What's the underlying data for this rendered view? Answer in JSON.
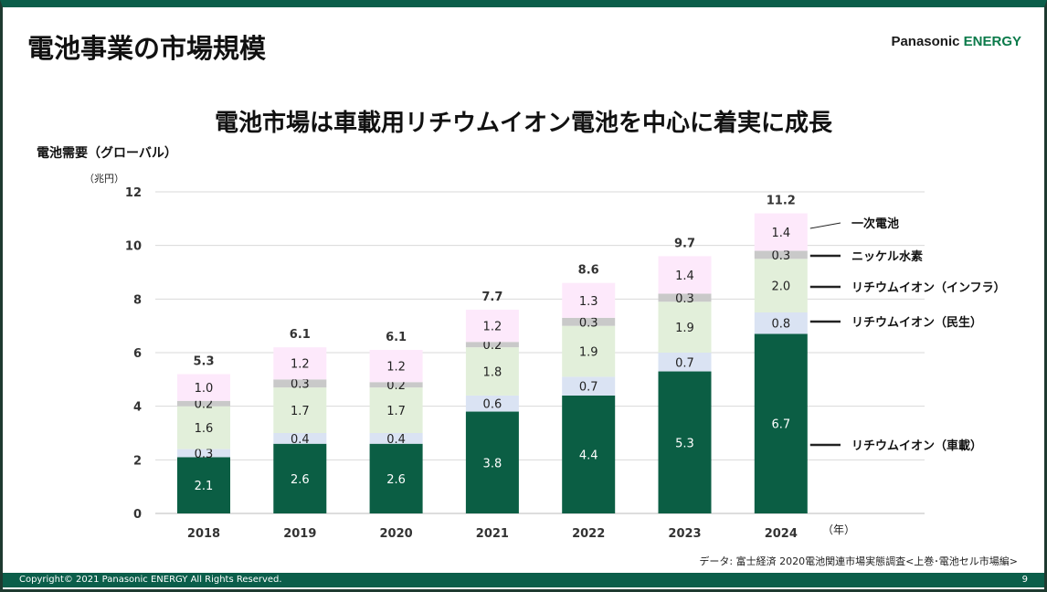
{
  "header": {
    "title": "電池事業の市場規模",
    "logo_main": "Panasonic ",
    "logo_accent": "ENERGY"
  },
  "headline": "電池市場は車載用リチウムイオン電池を中心に着実に成長",
  "footer": {
    "copyright": "Copyright© 2021 Panasonic ENERGY All Rights Reserved.",
    "page": "9"
  },
  "source": "データ: 富士経済 2020電池関連市場実態調査<上巻･電池セル市場編>",
  "chart_data": {
    "type": "bar",
    "stacked": true,
    "title": "",
    "ylabel": "電池需要（グローバル）",
    "unit": "（兆円）",
    "xunit": "（年）",
    "categories": [
      "2018",
      "2019",
      "2020",
      "2021",
      "2022",
      "2023",
      "2024"
    ],
    "ylim": [
      0,
      12
    ],
    "yticks": [
      0,
      2,
      4,
      6,
      8,
      10,
      12
    ],
    "grid": true,
    "series": [
      {
        "name": "リチウムイオン（車載）",
        "color": "#0b5e44",
        "text_color": "#ffffff",
        "values": [
          2.1,
          2.6,
          2.6,
          3.8,
          4.4,
          5.3,
          6.7
        ]
      },
      {
        "name": "リチウムイオン（民生）",
        "color": "#dae3f3",
        "text_color": "#222222",
        "values": [
          0.3,
          0.4,
          0.4,
          0.6,
          0.7,
          0.7,
          0.8
        ]
      },
      {
        "name": "リチウムイオン（インフラ）",
        "color": "#e2efda",
        "text_color": "#222222",
        "values": [
          1.6,
          1.7,
          1.7,
          1.8,
          1.9,
          1.9,
          2.0
        ]
      },
      {
        "name": "ニッケル水素",
        "color": "#c9c9c9",
        "text_color": "#222222",
        "values": [
          0.2,
          0.3,
          0.2,
          0.2,
          0.3,
          0.3,
          0.3
        ]
      },
      {
        "name": "一次電池",
        "color": "#fde9fb",
        "text_color": "#222222",
        "values": [
          1.0,
          1.2,
          1.2,
          1.2,
          1.3,
          1.4,
          1.4
        ]
      }
    ],
    "totals": [
      "5.3",
      "6.1",
      "6.1",
      "7.7",
      "8.6",
      "9.7",
      "11.2"
    ],
    "legend": "right, labels with leader lines"
  }
}
